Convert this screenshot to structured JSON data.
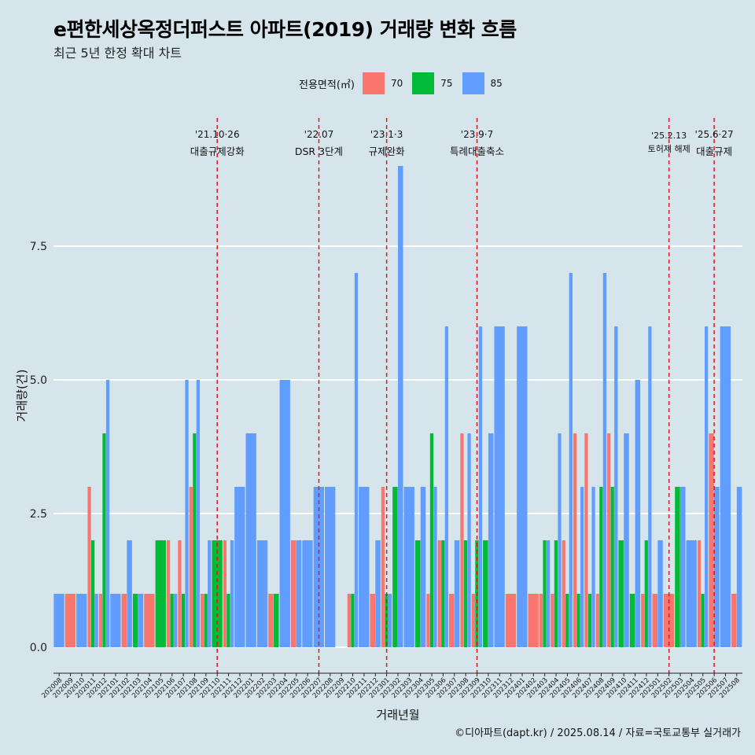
{
  "header": {
    "title": "e편한세상옥정더퍼스트 아파트(2019) 거래량 변화 흐름",
    "subtitle": "최근 5년 한정 확대 차트"
  },
  "legend": {
    "title": "전용면적(㎡)",
    "items": [
      {
        "label": "70",
        "color": "#f8766d"
      },
      {
        "label": "75",
        "color": "#00ba38"
      },
      {
        "label": "85",
        "color": "#619cff"
      }
    ]
  },
  "caption": "©디아파트(dapt.kr) / 2025.08.14 / 자료=국토교통부 실거래가",
  "chart_data": {
    "type": "bar",
    "xlabel": "거래년월",
    "ylabel": "거래량(건)",
    "ylim": [
      -0.6,
      10
    ],
    "y_ticks": [
      0.0,
      2.5,
      5.0,
      7.5
    ],
    "y_tick_labels": [
      "0.0",
      "2.5",
      "5.0",
      "7.5"
    ],
    "grid": true,
    "legend_position": "top",
    "categories": [
      "202008",
      "202009",
      "202010",
      "202011",
      "202012",
      "202101",
      "202102",
      "202103",
      "202104",
      "202105",
      "202106",
      "202107",
      "202108",
      "202109",
      "202110",
      "202111",
      "202112",
      "202201",
      "202202",
      "202203",
      "202204",
      "202205",
      "202206",
      "202207",
      "202208",
      "202209",
      "202210",
      "202211",
      "202212",
      "202301",
      "202302",
      "202303",
      "202304",
      "202305",
      "202306",
      "202307",
      "202308",
      "202309",
      "202310",
      "202311",
      "202312",
      "202401",
      "202402",
      "202403",
      "202404",
      "202405",
      "202406",
      "202407",
      "202408",
      "202409",
      "202410",
      "202411",
      "202412",
      "202501",
      "202502",
      "202503",
      "202504",
      "202505",
      "202506",
      "202507",
      "202508"
    ],
    "series": [
      {
        "name": "70",
        "color": "#f8766d",
        "values": [
          0,
          1,
          0,
          3,
          1,
          0,
          1,
          0,
          1,
          0,
          2,
          2,
          3,
          1,
          0,
          2,
          0,
          0,
          0,
          1,
          0,
          2,
          0,
          0,
          0,
          0,
          1,
          0,
          1,
          3,
          0,
          0,
          0,
          1,
          2,
          1,
          4,
          1,
          0,
          0,
          1,
          0,
          1,
          1,
          1,
          2,
          4,
          4,
          1,
          4,
          0,
          0,
          1,
          1,
          1,
          0,
          0,
          2,
          4,
          0,
          1
        ]
      },
      {
        "name": "75",
        "color": "#00ba38",
        "values": [
          0,
          0,
          0,
          2,
          4,
          0,
          0,
          1,
          0,
          2,
          1,
          1,
          4,
          1,
          2,
          1,
          0,
          0,
          0,
          1,
          0,
          0,
          0,
          0,
          0,
          0,
          1,
          0,
          0,
          1,
          3,
          0,
          2,
          4,
          2,
          0,
          2,
          2,
          2,
          0,
          0,
          0,
          0,
          2,
          2,
          1,
          1,
          1,
          3,
          3,
          2,
          1,
          2,
          0,
          0,
          3,
          0,
          1,
          0,
          0,
          0
        ]
      },
      {
        "name": "85",
        "color": "#619cff",
        "values": [
          1,
          0,
          1,
          1,
          5,
          1,
          2,
          1,
          0,
          0,
          1,
          5,
          5,
          2,
          0,
          2,
          3,
          4,
          2,
          0,
          5,
          2,
          2,
          3,
          3,
          0,
          7,
          3,
          2,
          1,
          9,
          3,
          3,
          3,
          6,
          2,
          4,
          6,
          4,
          6,
          0,
          6,
          0,
          2,
          4,
          7,
          3,
          3,
          7,
          6,
          4,
          5,
          6,
          2,
          0,
          3,
          2,
          6,
          3,
          6,
          3
        ]
      }
    ],
    "events": [
      {
        "index": 14,
        "date": "'21.10·26",
        "label": "대출규제강화"
      },
      {
        "index": 23,
        "date": "'22.07",
        "label": "DSR 3단계"
      },
      {
        "index": 29,
        "date": "'23.1·3",
        "label": "규제완화"
      },
      {
        "index": 37,
        "date": "'23.9·7",
        "label": "특례대출축소"
      },
      {
        "index": 54,
        "date": "'25.2.13",
        "label": "토허제 해제"
      },
      {
        "index": 58,
        "date": "'25.6·27",
        "label": "대출규제"
      }
    ]
  }
}
